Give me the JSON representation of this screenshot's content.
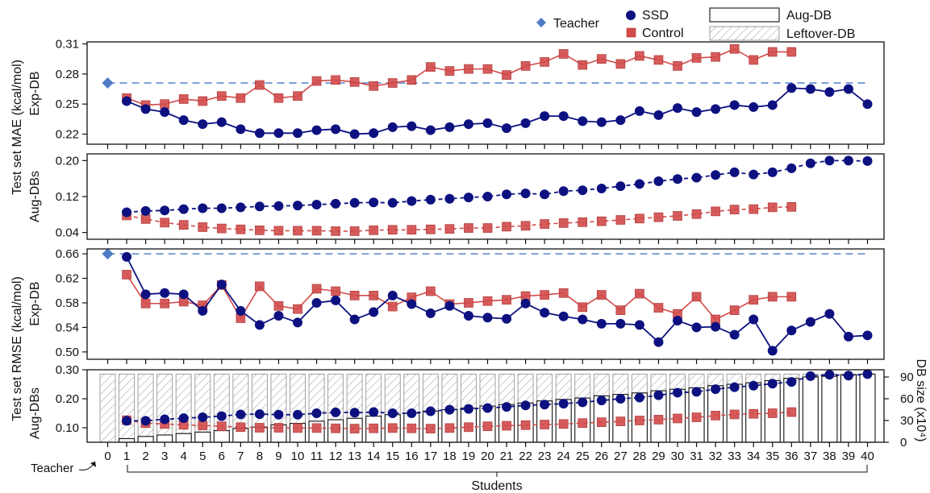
{
  "legend": {
    "teacher": "Teacher",
    "ssd": "SSD",
    "control": "Control",
    "aug_db": "Aug-DB",
    "leftover_db": "Leftover-DB"
  },
  "labels": {
    "mae_group": "Test set MAE (kcal/mol)",
    "rmse_group": "Test set RMSE (kcal/mol)",
    "exp_db": "Exp-DB",
    "aug_dbs": "Aug-DBs",
    "db_size": "DB size (x10⁴)",
    "teacher_tick": "Teacher",
    "students": "Students"
  },
  "colors": {
    "ssd": "#0d1180",
    "control": "#d24a4a",
    "teacher": "#4e7bc4",
    "dashed": "#7f9fd9"
  },
  "chart_data": [
    {
      "id": "mae_exp",
      "type": "line",
      "ylabel": "Exp-DB",
      "ylim": [
        0.21,
        0.312
      ],
      "yticks": [
        0.22,
        0.25,
        0.28,
        0.31
      ],
      "ytick_labels": [
        "0.22",
        "0.25",
        "0.28",
        "0.31"
      ],
      "teacher": 0.271,
      "series": [
        {
          "name": "SSD",
          "x": [
            1,
            2,
            3,
            4,
            5,
            6,
            7,
            8,
            9,
            10,
            11,
            12,
            13,
            14,
            15,
            16,
            17,
            18,
            19,
            20,
            21,
            22,
            23,
            24,
            25,
            26,
            27,
            28,
            29,
            30,
            31,
            32,
            33,
            34,
            35,
            36,
            37,
            38,
            39,
            40
          ],
          "values": [
            0.253,
            0.245,
            0.242,
            0.234,
            0.23,
            0.232,
            0.225,
            0.221,
            0.221,
            0.221,
            0.224,
            0.225,
            0.22,
            0.221,
            0.227,
            0.228,
            0.224,
            0.227,
            0.23,
            0.231,
            0.226,
            0.231,
            0.238,
            0.238,
            0.233,
            0.232,
            0.234,
            0.243,
            0.239,
            0.246,
            0.242,
            0.245,
            0.249,
            0.247,
            0.249,
            0.266,
            0.265,
            0.262,
            0.265,
            0.25
          ]
        },
        {
          "name": "Control",
          "x": [
            1,
            2,
            3,
            4,
            5,
            6,
            7,
            8,
            9,
            10,
            11,
            12,
            13,
            14,
            15,
            16,
            17,
            18,
            19,
            20,
            21,
            22,
            23,
            24,
            25,
            26,
            27,
            28,
            29,
            30,
            31,
            32,
            33,
            34,
            35,
            36
          ],
          "values": [
            0.256,
            0.249,
            0.25,
            0.255,
            0.253,
            0.258,
            0.256,
            0.269,
            0.256,
            0.258,
            0.273,
            0.274,
            0.272,
            0.268,
            0.271,
            0.274,
            0.287,
            0.283,
            0.285,
            0.285,
            0.279,
            0.288,
            0.292,
            0.3,
            0.289,
            0.295,
            0.29,
            0.298,
            0.294,
            0.288,
            0.296,
            0.297,
            0.305,
            0.294,
            0.302,
            0.302
          ]
        }
      ]
    },
    {
      "id": "mae_aug",
      "type": "line",
      "ylabel": "Aug-DBs",
      "ylim": [
        0.025,
        0.215
      ],
      "yticks": [
        0.04,
        0.12,
        0.2
      ],
      "ytick_labels": [
        "0.04",
        "0.12",
        "0.20"
      ],
      "series": [
        {
          "name": "SSD",
          "x": [
            1,
            2,
            3,
            4,
            5,
            6,
            7,
            8,
            9,
            10,
            11,
            12,
            13,
            14,
            15,
            16,
            17,
            18,
            19,
            20,
            21,
            22,
            23,
            24,
            25,
            26,
            27,
            28,
            29,
            30,
            31,
            32,
            33,
            34,
            35,
            36,
            37,
            38,
            39,
            40
          ],
          "values": [
            0.085,
            0.088,
            0.089,
            0.092,
            0.094,
            0.094,
            0.096,
            0.098,
            0.099,
            0.1,
            0.102,
            0.104,
            0.106,
            0.107,
            0.106,
            0.11,
            0.113,
            0.115,
            0.118,
            0.12,
            0.125,
            0.127,
            0.125,
            0.132,
            0.134,
            0.138,
            0.143,
            0.148,
            0.154,
            0.159,
            0.162,
            0.168,
            0.174,
            0.169,
            0.174,
            0.183,
            0.194,
            0.2,
            0.2,
            0.199
          ]
        },
        {
          "name": "Control",
          "x": [
            1,
            2,
            3,
            4,
            5,
            6,
            7,
            8,
            9,
            10,
            11,
            12,
            13,
            14,
            15,
            16,
            17,
            18,
            19,
            20,
            21,
            22,
            23,
            24,
            25,
            26,
            27,
            28,
            29,
            30,
            31,
            32,
            33,
            34,
            35,
            36
          ],
          "values": [
            0.078,
            0.07,
            0.062,
            0.057,
            0.052,
            0.049,
            0.047,
            0.045,
            0.044,
            0.044,
            0.044,
            0.043,
            0.043,
            0.045,
            0.046,
            0.046,
            0.047,
            0.048,
            0.05,
            0.05,
            0.053,
            0.055,
            0.059,
            0.061,
            0.063,
            0.065,
            0.068,
            0.071,
            0.074,
            0.077,
            0.081,
            0.087,
            0.091,
            0.092,
            0.096,
            0.097
          ]
        }
      ]
    },
    {
      "id": "rmse_exp",
      "type": "line",
      "ylabel": "Exp-DB",
      "ylim": [
        0.488,
        0.668
      ],
      "yticks": [
        0.5,
        0.54,
        0.58,
        0.62,
        0.66
      ],
      "ytick_labels": [
        "0.50",
        "0.54",
        "0.58",
        "0.62",
        "0.66"
      ],
      "teacher": 0.66,
      "series": [
        {
          "name": "SSD",
          "x": [
            1,
            2,
            3,
            4,
            5,
            6,
            7,
            8,
            9,
            10,
            11,
            12,
            13,
            14,
            15,
            16,
            17,
            18,
            19,
            20,
            21,
            22,
            23,
            24,
            25,
            26,
            27,
            28,
            29,
            30,
            31,
            32,
            33,
            34,
            35,
            36,
            37,
            38,
            39,
            40
          ],
          "values": [
            0.655,
            0.594,
            0.596,
            0.594,
            0.567,
            0.61,
            0.567,
            0.544,
            0.559,
            0.548,
            0.58,
            0.584,
            0.553,
            0.565,
            0.592,
            0.578,
            0.563,
            0.575,
            0.559,
            0.556,
            0.554,
            0.579,
            0.564,
            0.558,
            0.553,
            0.546,
            0.546,
            0.544,
            0.516,
            0.551,
            0.54,
            0.541,
            0.528,
            0.553,
            0.502,
            0.535,
            0.549,
            0.562,
            0.525,
            0.527
          ]
        },
        {
          "name": "Control",
          "x": [
            1,
            2,
            3,
            4,
            5,
            6,
            7,
            8,
            9,
            10,
            11,
            12,
            13,
            14,
            15,
            16,
            17,
            18,
            19,
            20,
            21,
            22,
            23,
            24,
            25,
            26,
            27,
            28,
            29,
            30,
            31,
            32,
            33,
            34,
            35,
            36
          ],
          "values": [
            0.626,
            0.579,
            0.579,
            0.582,
            0.576,
            0.609,
            0.555,
            0.607,
            0.575,
            0.57,
            0.603,
            0.599,
            0.592,
            0.592,
            0.574,
            0.589,
            0.599,
            0.578,
            0.58,
            0.583,
            0.585,
            0.591,
            0.593,
            0.596,
            0.573,
            0.593,
            0.568,
            0.595,
            0.572,
            0.562,
            0.59,
            0.553,
            0.568,
            0.585,
            0.59,
            0.59
          ]
        }
      ]
    },
    {
      "id": "rmse_aug",
      "type": "line+bar",
      "ylabel": "Aug-DBs",
      "ylim": [
        0.05,
        0.3
      ],
      "yticks": [
        0.1,
        0.2,
        0.3
      ],
      "ytick_labels": [
        "0.10",
        "0.20",
        "0.30"
      ],
      "y2label": "DB size (x10⁴)",
      "y2lim": [
        0,
        100
      ],
      "y2ticks": [
        0,
        30,
        60,
        90
      ],
      "y2tick_labels": [
        "0",
        "30",
        "60",
        "90"
      ],
      "bars": {
        "aug_db": [
          0,
          5,
          8,
          10,
          12,
          14,
          16,
          19,
          21,
          24,
          26,
          29,
          31,
          33,
          36,
          38,
          40,
          43,
          45,
          47,
          50,
          52,
          54,
          57,
          59,
          61,
          64,
          66,
          68,
          71,
          73,
          75,
          78,
          80,
          82,
          85,
          88,
          90,
          91,
          93,
          94
        ],
        "leftover_db": [
          94,
          89,
          86,
          84,
          82,
          80,
          78,
          75,
          73,
          70,
          68,
          65,
          63,
          61,
          58,
          56,
          54,
          51,
          49,
          47,
          44,
          42,
          40,
          37,
          35,
          33,
          30,
          28,
          26,
          23,
          21,
          19,
          16,
          14,
          12,
          9,
          6,
          4,
          3,
          1,
          0
        ]
      },
      "series": [
        {
          "name": "SSD",
          "x": [
            1,
            2,
            3,
            4,
            5,
            6,
            7,
            8,
            9,
            10,
            11,
            12,
            13,
            14,
            15,
            16,
            17,
            18,
            19,
            20,
            21,
            22,
            23,
            24,
            25,
            26,
            27,
            28,
            29,
            30,
            31,
            32,
            33,
            34,
            35,
            36,
            37,
            38,
            39,
            40
          ],
          "values": [
            0.124,
            0.124,
            0.129,
            0.133,
            0.136,
            0.14,
            0.146,
            0.147,
            0.145,
            0.145,
            0.15,
            0.153,
            0.152,
            0.154,
            0.15,
            0.15,
            0.157,
            0.162,
            0.165,
            0.168,
            0.172,
            0.177,
            0.18,
            0.183,
            0.188,
            0.194,
            0.2,
            0.204,
            0.212,
            0.221,
            0.224,
            0.233,
            0.24,
            0.245,
            0.252,
            0.258,
            0.278,
            0.283,
            0.28,
            0.285
          ]
        },
        {
          "name": "Control",
          "x": [
            1,
            2,
            3,
            4,
            5,
            6,
            7,
            8,
            9,
            10,
            11,
            12,
            13,
            14,
            15,
            16,
            17,
            18,
            19,
            20,
            21,
            22,
            23,
            24,
            25,
            26,
            27,
            28,
            29,
            30,
            31,
            32,
            33,
            34,
            35,
            36
          ],
          "values": [
            0.126,
            0.116,
            0.113,
            0.11,
            0.108,
            0.105,
            0.102,
            0.1,
            0.1,
            0.099,
            0.099,
            0.098,
            0.097,
            0.098,
            0.099,
            0.098,
            0.097,
            0.099,
            0.102,
            0.105,
            0.107,
            0.109,
            0.111,
            0.113,
            0.116,
            0.119,
            0.122,
            0.125,
            0.128,
            0.132,
            0.136,
            0.142,
            0.146,
            0.148,
            0.15,
            0.154
          ]
        }
      ]
    }
  ],
  "x_axis": {
    "ticks": [
      0,
      1,
      2,
      3,
      4,
      5,
      6,
      7,
      8,
      9,
      10,
      11,
      12,
      13,
      14,
      15,
      16,
      17,
      18,
      19,
      20,
      21,
      22,
      23,
      24,
      25,
      26,
      27,
      28,
      29,
      30,
      31,
      32,
      33,
      34,
      35,
      36,
      37,
      38,
      39,
      40
    ],
    "tick_labels": [
      "0",
      "1",
      "2",
      "3",
      "4",
      "5",
      "6",
      "7",
      "8",
      "9",
      "10",
      "11",
      "12",
      "13",
      "14",
      "15",
      "16",
      "17",
      "18",
      "19",
      "20",
      "21",
      "22",
      "23",
      "24",
      "25",
      "26",
      "27",
      "28",
      "29",
      "30",
      "31",
      "32",
      "33",
      "34",
      "35",
      "36",
      "37",
      "38",
      "39",
      "40"
    ]
  }
}
